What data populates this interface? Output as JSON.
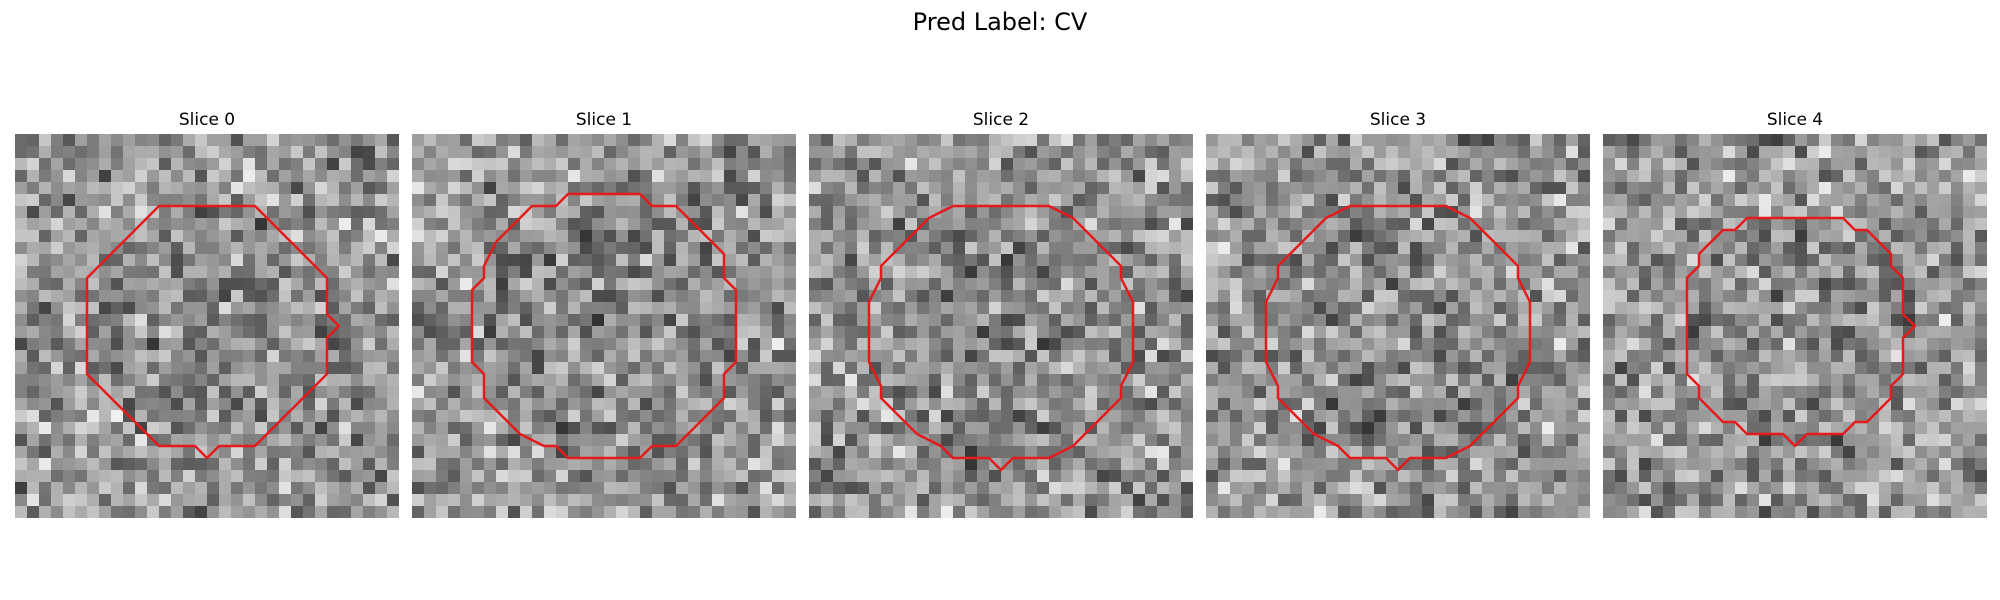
{
  "figure": {
    "title": "Pred Label: CV"
  },
  "panels": [
    {
      "title": "Slice 0",
      "seed": 11,
      "contour": {
        "cx": 16,
        "cy": 16,
        "r": 10.5
      }
    },
    {
      "title": "Slice 1",
      "seed": 29,
      "contour": {
        "cx": 16,
        "cy": 16,
        "r": 11
      }
    },
    {
      "title": "Slice 2",
      "seed": 47,
      "contour": {
        "cx": 16,
        "cy": 16.5,
        "r": 11
      }
    },
    {
      "title": "Slice 3",
      "seed": 83,
      "contour": {
        "cx": 16,
        "cy": 16.5,
        "r": 11
      }
    },
    {
      "title": "Slice 4",
      "seed": 97,
      "contour": {
        "cx": 16,
        "cy": 16,
        "r": 9.5
      }
    }
  ],
  "colors": {
    "contour": "#e41a1c",
    "colormap": "gray"
  }
}
